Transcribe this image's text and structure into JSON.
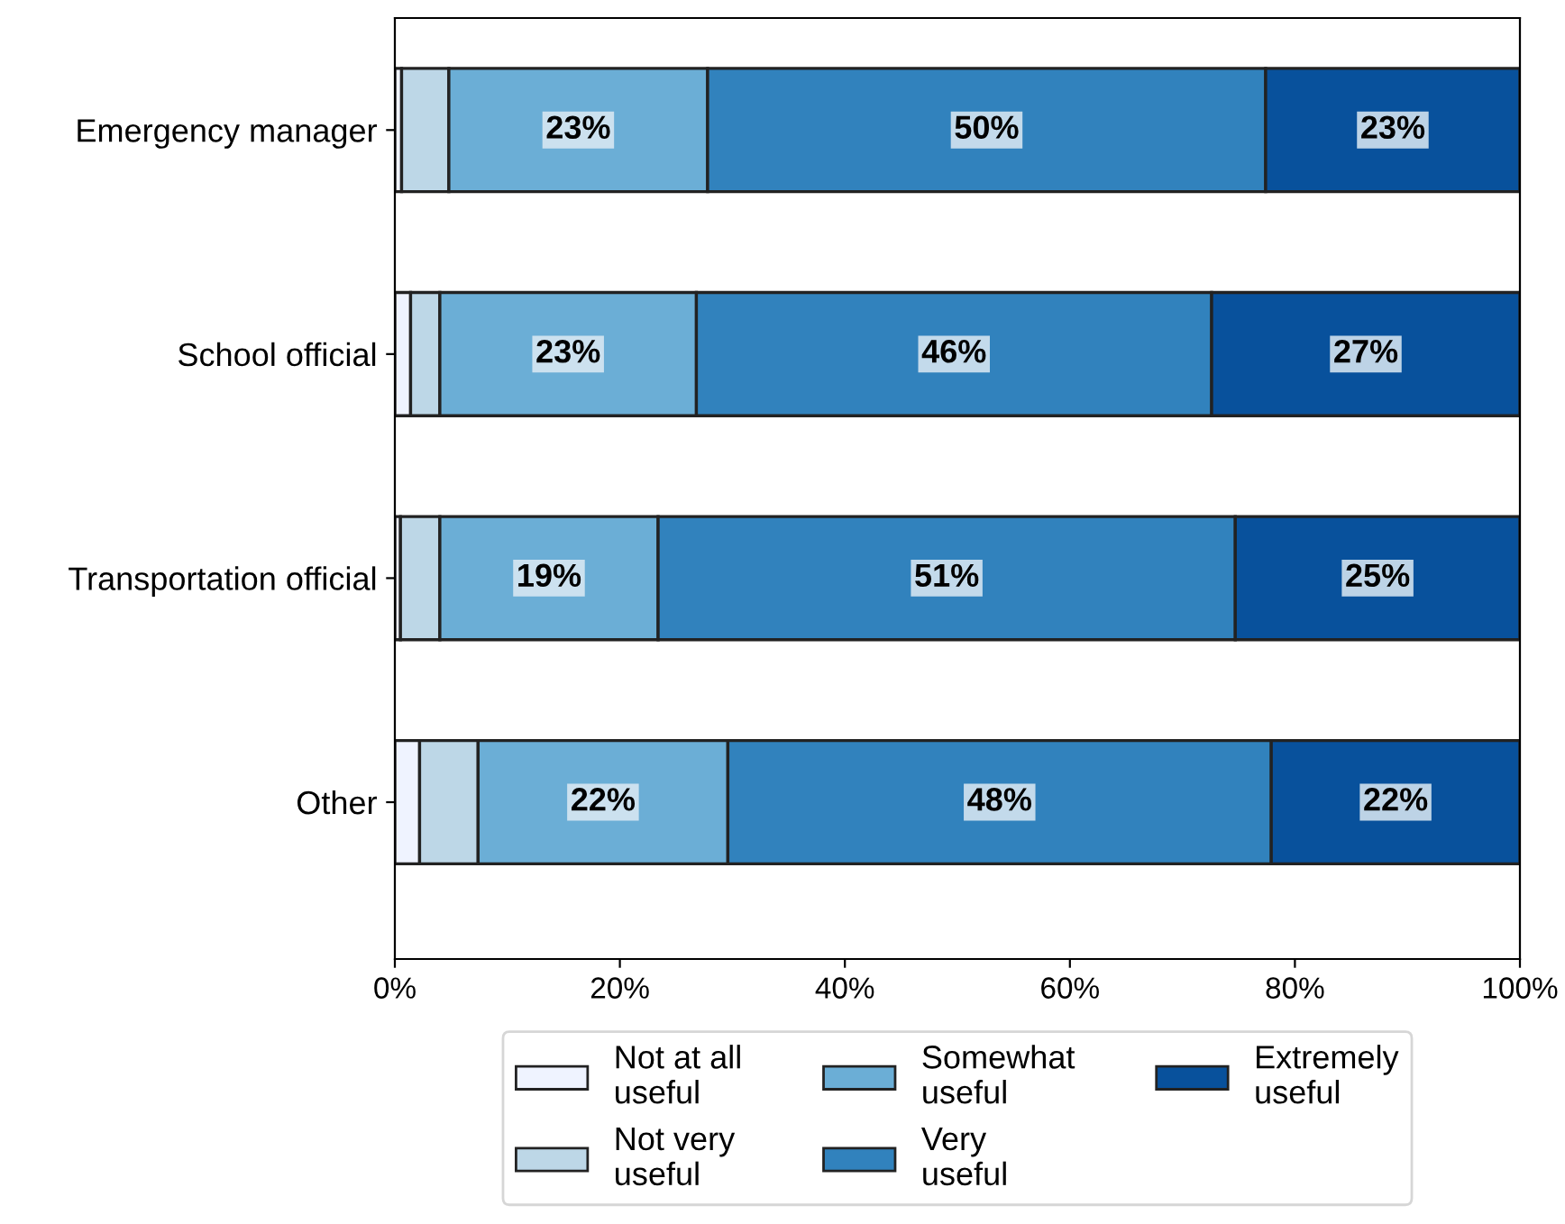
{
  "chart_data": {
    "type": "bar",
    "orientation": "horizontal",
    "stacked": true,
    "categories": [
      "Emergency manager",
      "School official",
      "Transportation official",
      "Other"
    ],
    "series": [
      {
        "name": "Not at all useful",
        "color": "#eff3ff",
        "values": [
          0.6,
          1.4,
          0.5,
          2.2
        ]
      },
      {
        "name": "Not very useful",
        "color": "#bdd7e7",
        "values": [
          4.2,
          2.6,
          3.5,
          5.2
        ]
      },
      {
        "name": "Somewhat useful",
        "color": "#6baed6",
        "values": [
          23.0,
          22.8,
          19.4,
          22.2
        ],
        "value_labels": [
          "23%",
          "23%",
          "19%",
          "22%"
        ]
      },
      {
        "name": "Very useful",
        "color": "#3182bd",
        "values": [
          49.6,
          45.8,
          51.3,
          48.3
        ],
        "value_labels": [
          "50%",
          "46%",
          "51%",
          "48%"
        ]
      },
      {
        "name": "Extremely useful",
        "color": "#08519c",
        "values": [
          22.6,
          27.4,
          25.3,
          22.1
        ],
        "value_labels": [
          "23%",
          "27%",
          "25%",
          "22%"
        ]
      }
    ],
    "xlim": [
      0,
      100
    ],
    "xticks": [
      {
        "value": 0,
        "label": "0%"
      },
      {
        "value": 20,
        "label": "20%"
      },
      {
        "value": 40,
        "label": "40%"
      },
      {
        "value": 60,
        "label": "60%"
      },
      {
        "value": 80,
        "label": "80%"
      },
      {
        "value": 100,
        "label": "100%"
      }
    ],
    "grid": false,
    "legend": "bottom"
  }
}
